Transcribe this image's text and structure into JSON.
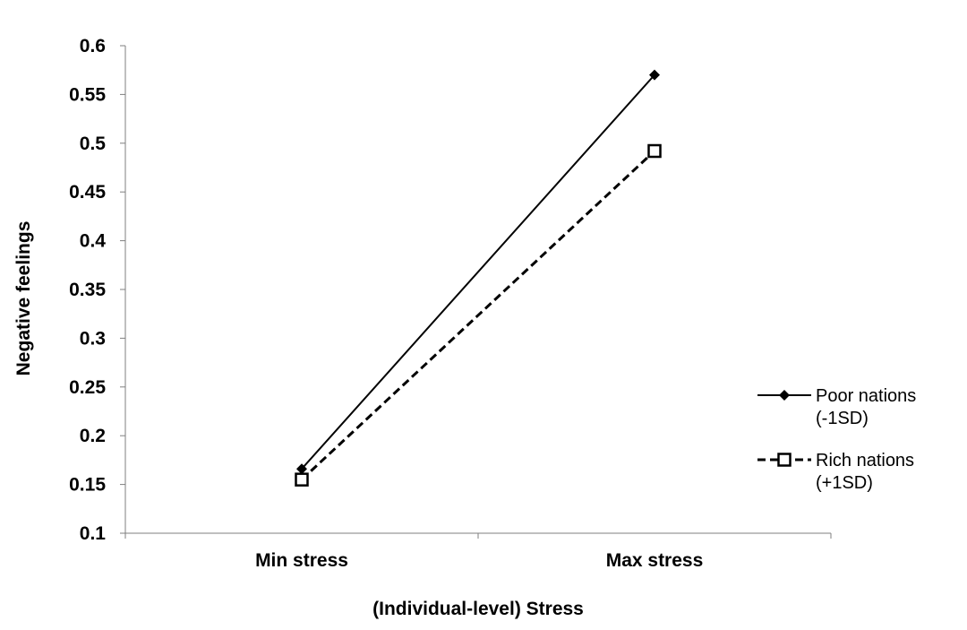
{
  "chart_data": {
    "type": "line",
    "title": "",
    "xlabel": "(Individual-level) Stress",
    "ylabel": "Negative feelings",
    "categories": [
      "Min stress",
      "Max stress"
    ],
    "ylim": [
      0.1,
      0.6
    ],
    "yticks": [
      "0.1",
      "0.15",
      "0.2",
      "0.25",
      "0.3",
      "0.35",
      "0.4",
      "0.45",
      "0.5",
      "0.55",
      "0.6"
    ],
    "grid": false,
    "legend_position": "right",
    "series": [
      {
        "name": "Poor nations (-1SD)",
        "legend_lines": [
          "Poor nations",
          "(-1SD)"
        ],
        "values": [
          0.166,
          0.57
        ],
        "line_style": "solid",
        "marker": "filled-diamond",
        "color": "#000000"
      },
      {
        "name": "Rich nations (+1SD)",
        "legend_lines": [
          "Rich nations",
          "(+1SD)"
        ],
        "values": [
          0.155,
          0.492
        ],
        "line_style": "dashed",
        "marker": "open-square",
        "color": "#000000"
      }
    ]
  }
}
